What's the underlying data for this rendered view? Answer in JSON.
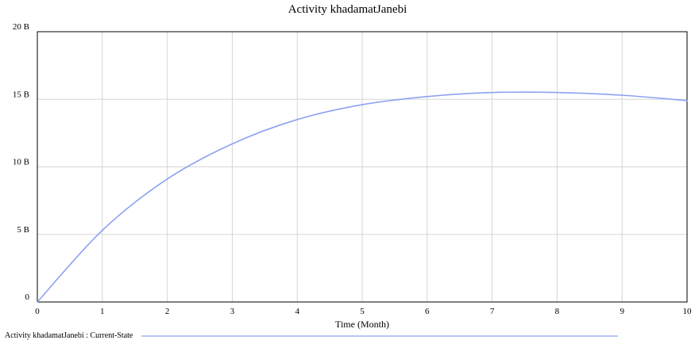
{
  "chart_data": {
    "type": "line",
    "title": "Activity khadamatJanebi",
    "xlabel": "Time (Month)",
    "ylabel": "",
    "xlim": [
      0,
      10
    ],
    "ylim": [
      0,
      20
    ],
    "x_ticks": [
      "0",
      "1",
      "2",
      "3",
      "4",
      "5",
      "6",
      "7",
      "8",
      "9",
      "10"
    ],
    "y_ticks": [
      "0",
      "5 B",
      "10 B",
      "15 B",
      "20 B"
    ],
    "grid": true,
    "legend_position": "bottom-left",
    "series": [
      {
        "name": "Activity khadamatJanebi : Current-State",
        "color": "#8da2f2",
        "x": [
          0,
          1,
          2,
          3,
          4,
          5,
          6,
          7,
          8,
          9,
          10
        ],
        "values": [
          0,
          5.3,
          9.1,
          11.7,
          13.5,
          14.6,
          15.2,
          15.5,
          15.5,
          15.3,
          14.9
        ]
      }
    ]
  }
}
